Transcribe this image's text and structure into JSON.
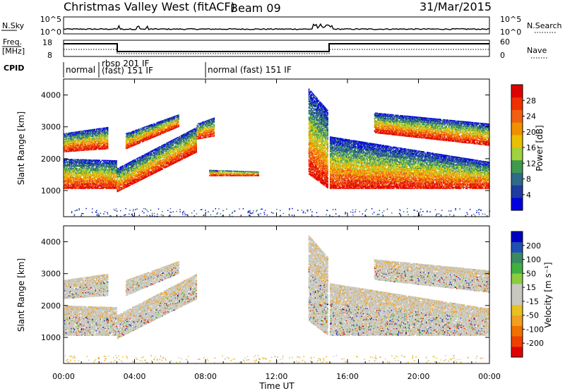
{
  "header": {
    "station": "Christmas Valley West (fitACF)",
    "beam": "Beam 09",
    "date": "31/Mar/2015"
  },
  "strip": {
    "nsky_label": "N.Sky",
    "nsky_ticks": [
      "10^5",
      "10^0"
    ],
    "nsearch_label": "N.Search",
    "nsearch_ticks": [
      "10^5",
      "10^0"
    ],
    "freq_label_1": "Freq.",
    "freq_label_2": "[MHz]",
    "freq_ticks": [
      "18",
      "8"
    ],
    "nave_label": "Nave",
    "nave_ticks": [
      "60",
      "0"
    ],
    "cpid_label": "CPID",
    "cpid_modes": [
      {
        "text": "normal",
        "start_hour": 0.0,
        "end_hour": 2.0
      },
      {
        "text": "rbsp 201 IF",
        "start_hour": 2.0,
        "end_hour": 8.0
      },
      {
        "text": "(fast) 151 IF",
        "start_hour": 2.0,
        "end_hour": 8.0
      },
      {
        "text": "normal (fast) 151 IF",
        "start_hour": 8.0,
        "end_hour": 24.0
      }
    ]
  },
  "time_axis": {
    "label": "Time UT",
    "ticks": [
      "00:00",
      "04:00",
      "08:00",
      "12:00",
      "16:00",
      "20:00",
      "00:00"
    ]
  },
  "chart_data": [
    {
      "type": "heatmap",
      "name": "power",
      "ylabel": "Slant Range [km]",
      "xlim": [
        0,
        24
      ],
      "ylim": [
        180,
        4500
      ],
      "yticks": [
        "1000",
        "2000",
        "3000",
        "4000"
      ],
      "colorbar": {
        "label": "Power [dB]",
        "ticks": [
          "28",
          "24",
          "20",
          "16",
          "12",
          "8",
          "4"
        ],
        "range": [
          0,
          32
        ],
        "colors": [
          "#0000e0",
          "#1e3ca0",
          "#2e6b8a",
          "#3f9a4e",
          "#9fd23c",
          "#e8c000",
          "#f09000",
          "#f06010",
          "#f03000",
          "#e00000"
        ]
      },
      "regions": [
        {
          "t": [
            0.0,
            3.0
          ],
          "r_low": [
            1050,
            1050
          ],
          "r_high": [
            2000,
            1950
          ]
        },
        {
          "t": [
            3.0,
            7.5
          ],
          "r_low": [
            950,
            2200
          ],
          "r_high": [
            1700,
            3000
          ]
        },
        {
          "t": [
            0.0,
            2.5
          ],
          "r_low": [
            2200,
            2300
          ],
          "r_high": [
            2800,
            3000
          ]
        },
        {
          "t": [
            3.5,
            6.5
          ],
          "r_low": [
            2300,
            3000
          ],
          "r_high": [
            2800,
            3400
          ]
        },
        {
          "t": [
            7.5,
            8.5
          ],
          "r_low": [
            2600,
            2700
          ],
          "r_high": [
            3100,
            3300
          ]
        },
        {
          "t": [
            8.2,
            11.0
          ],
          "r_low": [
            1450,
            1450
          ],
          "r_high": [
            1650,
            1600
          ]
        },
        {
          "t": [
            13.8,
            14.9
          ],
          "r_low": [
            1500,
            1050
          ],
          "r_high": [
            4200,
            3500
          ]
        },
        {
          "t": [
            15.0,
            24.0
          ],
          "r_low": [
            1050,
            1050
          ],
          "r_high": [
            2700,
            1900
          ]
        },
        {
          "t": [
            17.5,
            24.0
          ],
          "r_low": [
            2800,
            2400
          ],
          "r_high": [
            3450,
            3100
          ]
        }
      ]
    },
    {
      "type": "heatmap",
      "name": "velocity",
      "ylabel": "Slant Range [km]",
      "xlim": [
        0,
        24
      ],
      "ylim": [
        180,
        4500
      ],
      "yticks": [
        "1000",
        "2000",
        "3000",
        "4000"
      ],
      "colorbar": {
        "label": "Velocity [m s⁻¹]",
        "ticks": [
          "200",
          "100",
          "50",
          "15",
          "-15",
          "-50",
          "-100",
          "-200"
        ],
        "range": [
          -250,
          250
        ],
        "colors": [
          "#e00000",
          "#f04000",
          "#f07000",
          "#f0a020",
          "#e8c020",
          "#c8c8c0",
          "#c8c8c0",
          "#8ccc40",
          "#40b040",
          "#3a8a60",
          "#2050b0",
          "#0000c0"
        ]
      },
      "regions": [
        {
          "t": [
            0.0,
            3.0
          ],
          "r_low": [
            1050,
            1050
          ],
          "r_high": [
            2000,
            1950
          ]
        },
        {
          "t": [
            3.0,
            7.5
          ],
          "r_low": [
            950,
            2200
          ],
          "r_high": [
            1700,
            3000
          ]
        },
        {
          "t": [
            0.0,
            2.5
          ],
          "r_low": [
            2200,
            2300
          ],
          "r_high": [
            2800,
            3000
          ]
        },
        {
          "t": [
            3.5,
            6.5
          ],
          "r_low": [
            2300,
            3000
          ],
          "r_high": [
            2800,
            3400
          ]
        },
        {
          "t": [
            13.8,
            14.9
          ],
          "r_low": [
            1500,
            1050
          ],
          "r_high": [
            4200,
            3500
          ]
        },
        {
          "t": [
            15.0,
            24.0
          ],
          "r_low": [
            1050,
            1050
          ],
          "r_high": [
            2700,
            1900
          ]
        },
        {
          "t": [
            17.5,
            24.0
          ],
          "r_low": [
            2800,
            2400
          ],
          "r_high": [
            3450,
            3100
          ]
        }
      ]
    }
  ]
}
